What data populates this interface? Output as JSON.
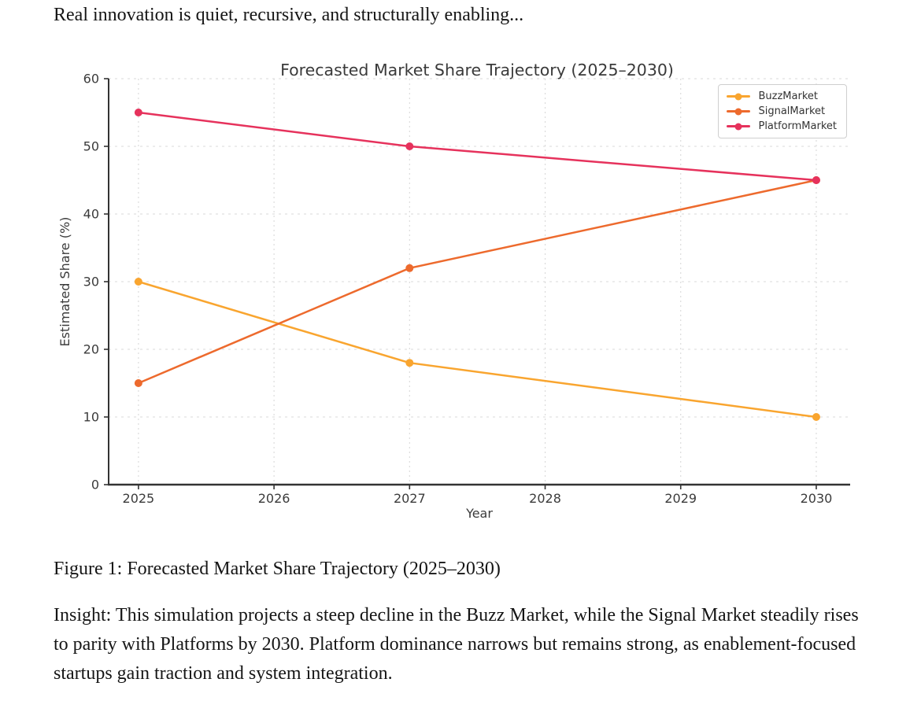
{
  "page": {
    "header_text": "Real innovation is quiet, recursive, and structurally enabling...",
    "figure_caption": "Figure 1: Forecasted Market Share Trajectory (2025–2030)",
    "insight_text": "Insight: This simulation projects a steep decline in the Buzz Market, while the Signal Market steadily rises to parity with Platforms by 2030. Platform dominance narrows but remains strong, as enablement-focused startups gain traction and system integration."
  },
  "chart_data": {
    "type": "line",
    "title": "Forecasted Market Share Trajectory (2025–2030)",
    "xlabel": "Year",
    "ylabel": "Estimated Share (%)",
    "x": [
      2025,
      2027,
      2030
    ],
    "x_ticks": [
      "2025",
      "2026",
      "2027",
      "2028",
      "2029",
      "2030"
    ],
    "x_tick_values": [
      2025,
      2026,
      2027,
      2028,
      2029,
      2030
    ],
    "y_ticks": [
      0,
      10,
      20,
      30,
      40,
      50,
      60
    ],
    "xlim": [
      2024.78,
      2030.25
    ],
    "ylim": [
      0,
      60
    ],
    "grid": true,
    "grid_style": "dashed",
    "legend_position": "upper right",
    "axis_color": "#333333",
    "grid_color": "#d9d9d9",
    "series": [
      {
        "name": "BuzzMarket",
        "color": "#F9A52F",
        "values": [
          30,
          18,
          10
        ]
      },
      {
        "name": "SignalMarket",
        "color": "#ED6A2D",
        "values": [
          15,
          32,
          45
        ]
      },
      {
        "name": "PlatformMarket",
        "color": "#E6325C",
        "values": [
          55,
          50,
          45
        ]
      }
    ]
  }
}
